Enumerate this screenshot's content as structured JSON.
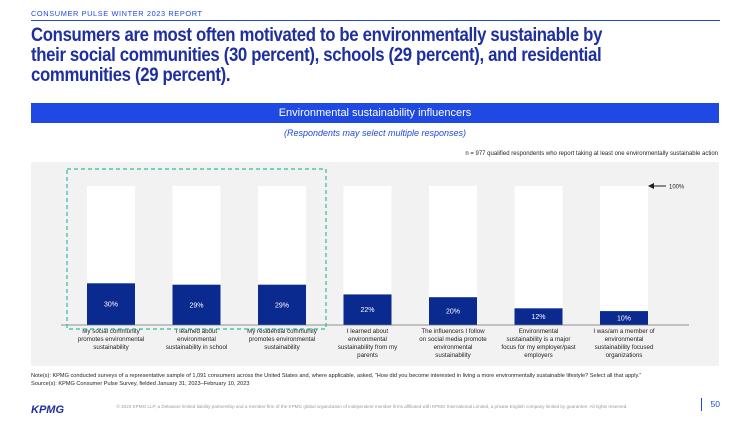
{
  "header": {
    "kicker": "CONSUMER PULSE WINTER 2023 REPORT",
    "headline": "Consumers are most often motivated to be environmentally sustainable by their social communities (30 percent), schools (29 percent), and residential communities (29 percent)."
  },
  "chart_data": {
    "type": "bar",
    "title": "Environmental sustainability influencers",
    "subtitle": "(Respondents may select multiple responses)",
    "sample_note": "n = 977 qualified respondents who report taking at least one environmentally sustainable action",
    "reference_label": "100%",
    "categories": [
      "My social community promotes environmental sustainability",
      "I learned about environmental sustainability in school",
      "My residential community promotes environmental sustainability",
      "I learned about environmental sustainability from my parents",
      "The influencers I follow on social media promote environmental sustainability",
      "Environmental sustainability is a major focus for my employer/past employers",
      "I was/am a member of environmental sustainability focused organizations"
    ],
    "values": [
      30,
      29,
      29,
      22,
      20,
      12,
      10
    ],
    "value_labels": [
      "30%",
      "29%",
      "29%",
      "22%",
      "20%",
      "12%",
      "10%"
    ],
    "ylim": [
      0,
      100
    ],
    "highlighted_categories": [
      0,
      1,
      2
    ],
    "colors": {
      "bar": "#0b2a8f",
      "track": "#ffffff",
      "background": "#f2f2f2",
      "highlight_box": "#2bbfa4",
      "accent": "#1e49e2"
    }
  },
  "footer": {
    "note": "Note(s):      KPMG conducted surveys of a representative sample of 1,091 consumers across the United States and, where applicable, asked, “How did you become interested in living a more environmentally sustainable lifestyle? Select all that apply.”",
    "source": "Source(s):   KPMG Consumer Pulse Survey, fielded January 31, 2023–February 10, 2023",
    "logo": "KPMG",
    "copyright": "© 2023 KPMG LLP, a Delaware limited liability partnership and a member firm of the KPMG global organization of independent member firms affiliated with KPMG International Limited, a private English company limited by guarantee. All rights reserved.",
    "page": "50"
  }
}
